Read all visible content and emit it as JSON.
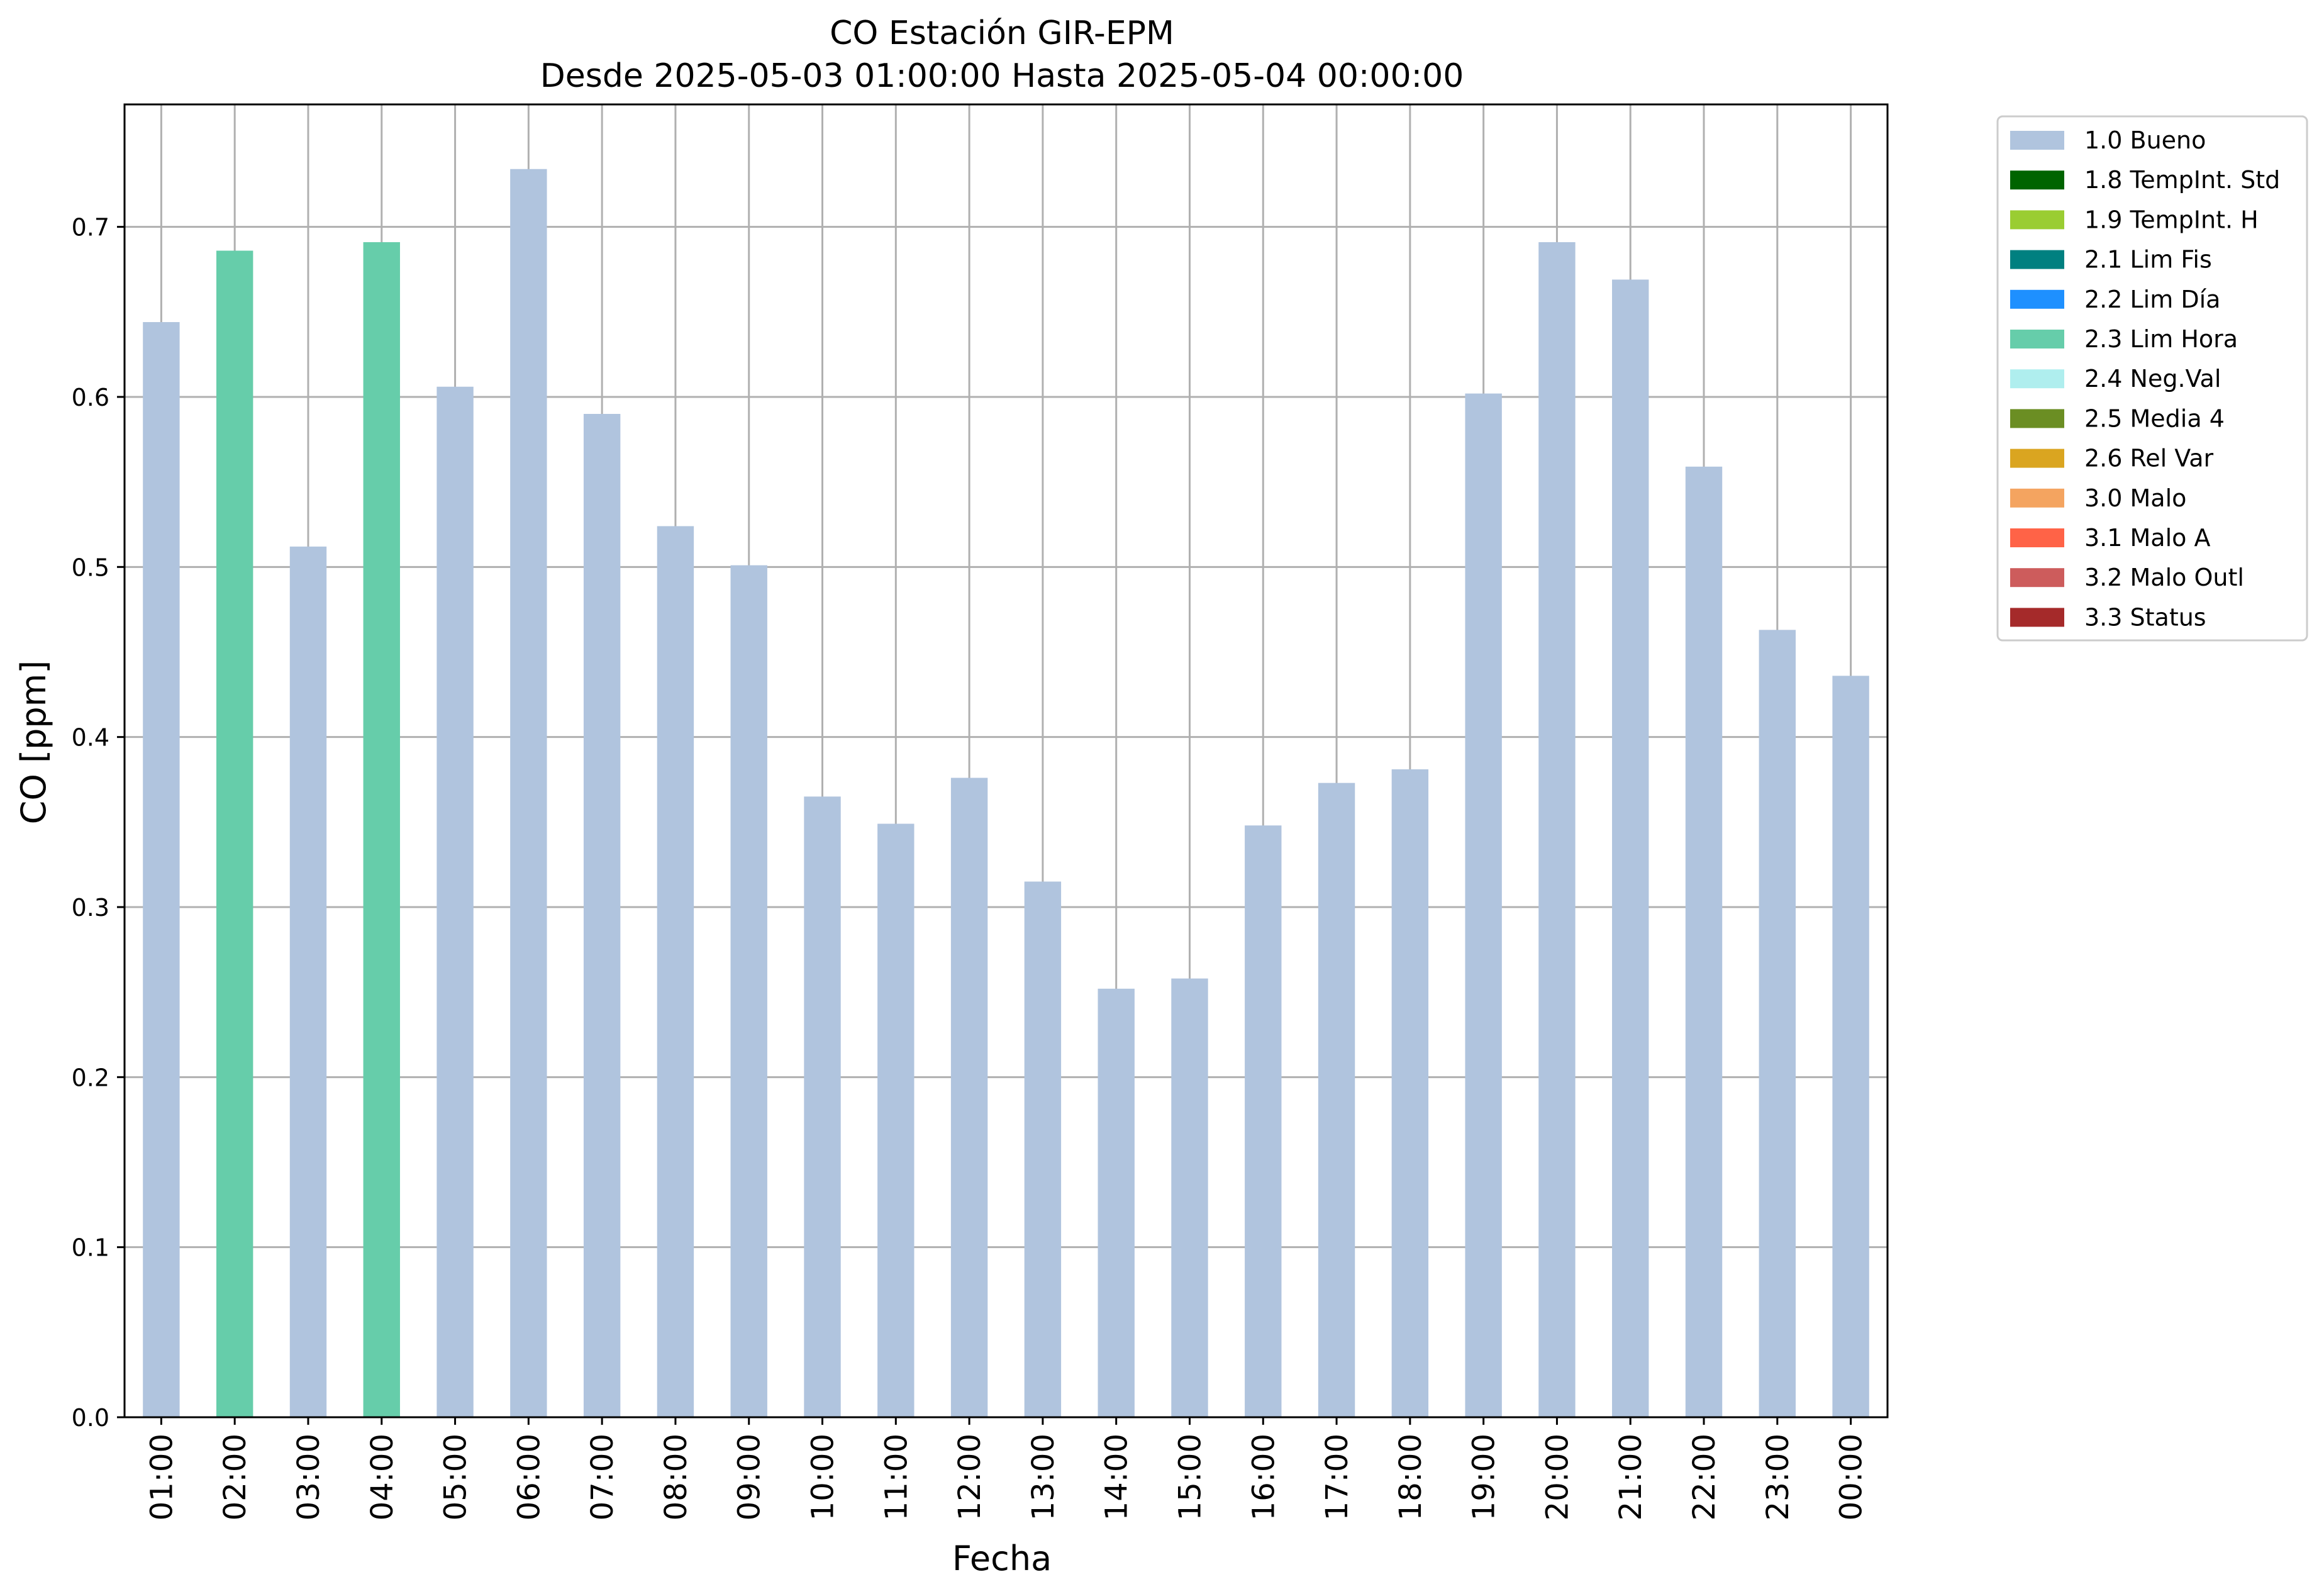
{
  "chart_data": {
    "type": "bar",
    "title": "CO Estación GIR-EPM",
    "subtitle": "Desde 2025-05-03 01:00:00 Hasta 2025-05-04 00:00:00",
    "xlabel": "Fecha",
    "ylabel": "CO [ppm]",
    "ylim": [
      0,
      0.772
    ],
    "yticks": [
      "0.0",
      "0.1",
      "0.2",
      "0.3",
      "0.4",
      "0.5",
      "0.6",
      "0.7"
    ],
    "grid": true,
    "legend_position": "outside-top-right",
    "categories": [
      "01:00",
      "02:00",
      "03:00",
      "04:00",
      "05:00",
      "06:00",
      "07:00",
      "08:00",
      "09:00",
      "10:00",
      "11:00",
      "12:00",
      "13:00",
      "14:00",
      "15:00",
      "16:00",
      "17:00",
      "18:00",
      "19:00",
      "20:00",
      "21:00",
      "22:00",
      "23:00",
      "00:00"
    ],
    "values": [
      0.644,
      0.686,
      0.512,
      0.691,
      0.606,
      0.734,
      0.59,
      0.524,
      0.501,
      0.365,
      0.349,
      0.376,
      0.315,
      0.252,
      0.258,
      0.348,
      0.373,
      0.381,
      0.602,
      0.691,
      0.669,
      0.559,
      0.463,
      0.436
    ],
    "flags": [
      "1.0 Bueno",
      "2.3 Lim Hora",
      "1.0 Bueno",
      "2.3 Lim Hora",
      "1.0 Bueno",
      "1.0 Bueno",
      "1.0 Bueno",
      "1.0 Bueno",
      "1.0 Bueno",
      "1.0 Bueno",
      "1.0 Bueno",
      "1.0 Bueno",
      "1.0 Bueno",
      "1.0 Bueno",
      "1.0 Bueno",
      "1.0 Bueno",
      "1.0 Bueno",
      "1.0 Bueno",
      "1.0 Bueno",
      "1.0 Bueno",
      "1.0 Bueno",
      "1.0 Bueno",
      "1.0 Bueno",
      "1.0 Bueno"
    ],
    "legend": [
      {
        "name": "1.0 Bueno",
        "color": "#b0c4de"
      },
      {
        "name": "1.8 TempInt. Std",
        "color": "#006400"
      },
      {
        "name": "1.9 TempInt. H",
        "color": "#9acd32"
      },
      {
        "name": "2.1 Lim Fis",
        "color": "#008080"
      },
      {
        "name": "2.2 Lim Día",
        "color": "#1e90ff"
      },
      {
        "name": "2.3 Lim Hora",
        "color": "#66cdaa"
      },
      {
        "name": "2.4 Neg.Val",
        "color": "#afeeee"
      },
      {
        "name": "2.5 Media 4",
        "color": "#6b8e23"
      },
      {
        "name": "2.6 Rel Var",
        "color": "#daa520"
      },
      {
        "name": "3.0 Malo",
        "color": "#f4a460"
      },
      {
        "name": "3.1 Malo A",
        "color": "#ff6347"
      },
      {
        "name": "3.2 Malo Outl",
        "color": "#cd5c5c"
      },
      {
        "name": "3.3 Status",
        "color": "#a52a2a"
      }
    ]
  }
}
